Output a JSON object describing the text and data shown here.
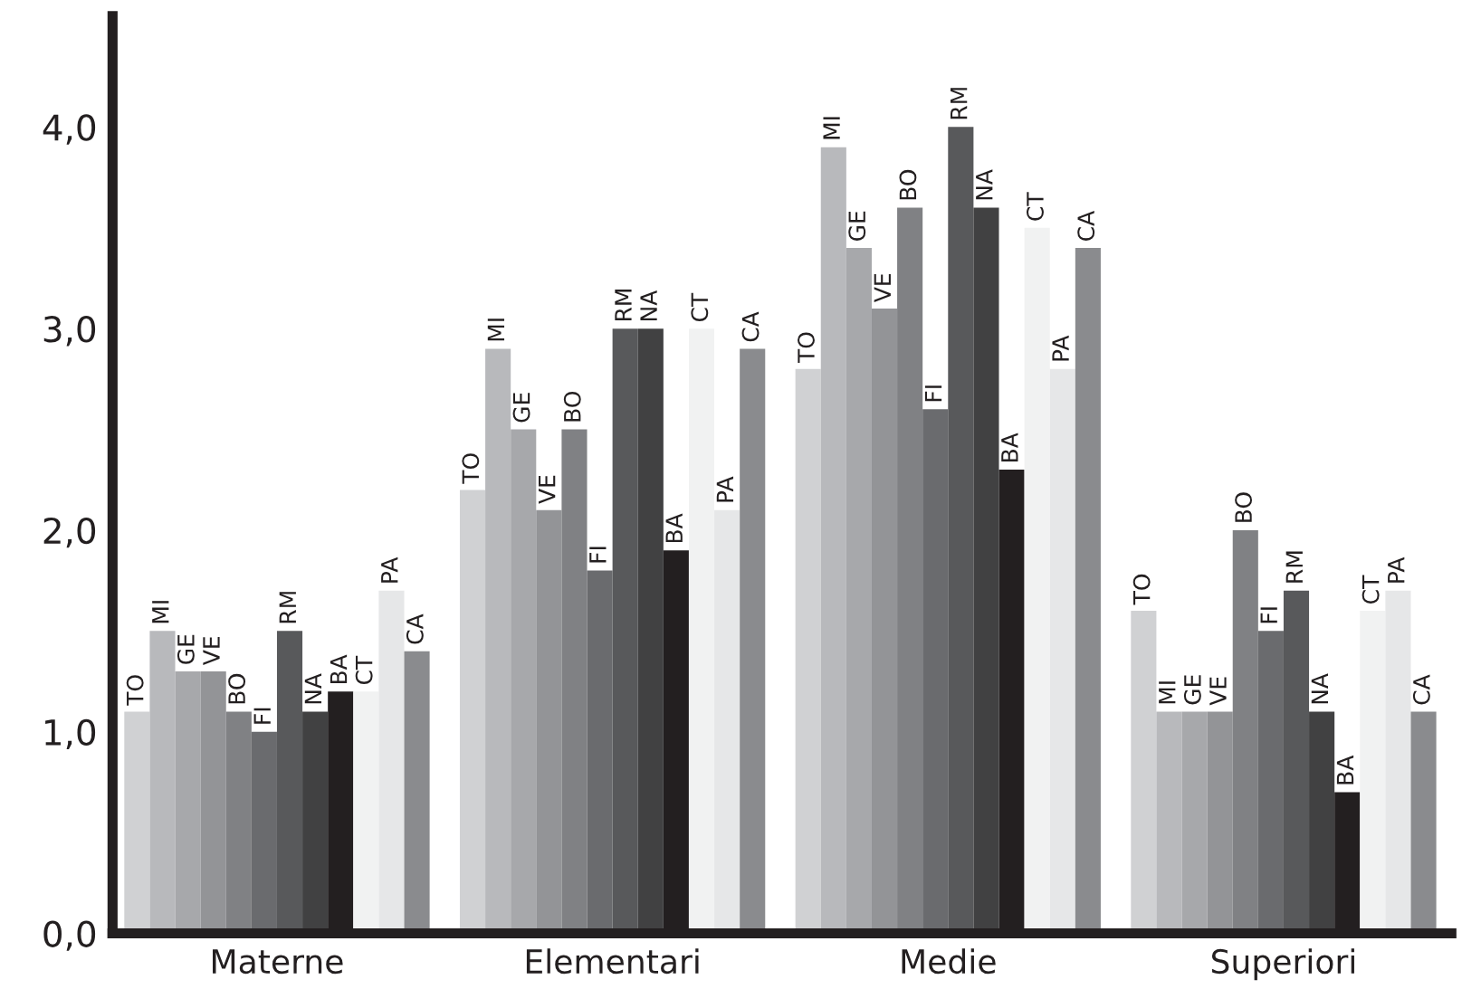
{
  "chart_data": {
    "type": "bar",
    "categories": [
      "Materne",
      "Elementari",
      "Medie",
      "Superiori"
    ],
    "series": [
      {
        "name": "TO",
        "color": "#d0d1d3",
        "values": [
          1.1,
          2.2,
          2.8,
          1.6
        ]
      },
      {
        "name": "MI",
        "color": "#b8b9bc",
        "values": [
          1.5,
          2.9,
          3.9,
          1.1
        ]
      },
      {
        "name": "GE",
        "color": "#a7a8ab",
        "values": [
          1.3,
          2.5,
          3.4,
          1.1
        ]
      },
      {
        "name": "VE",
        "color": "#939497",
        "values": [
          1.3,
          2.1,
          3.1,
          1.1
        ]
      },
      {
        "name": "BO",
        "color": "#808184",
        "values": [
          1.1,
          2.5,
          3.6,
          2.0
        ]
      },
      {
        "name": "FI",
        "color": "#6a6b6e",
        "values": [
          1.0,
          1.8,
          2.6,
          1.5
        ]
      },
      {
        "name": "RM",
        "color": "#58595b",
        "values": [
          1.5,
          3.0,
          4.0,
          1.7
        ]
      },
      {
        "name": "NA",
        "color": "#414142",
        "values": [
          1.1,
          3.0,
          3.6,
          1.1
        ]
      },
      {
        "name": "BA",
        "color": "#231f20",
        "values": [
          1.2,
          1.9,
          2.3,
          0.7
        ]
      },
      {
        "name": "CT",
        "color": "#f1f2f2",
        "values": [
          1.2,
          3.0,
          3.5,
          1.6
        ]
      },
      {
        "name": "PA",
        "color": "#e6e7e8",
        "values": [
          1.7,
          2.1,
          2.8,
          1.7
        ]
      },
      {
        "name": "CA",
        "color": "#8a8b8e",
        "values": [
          1.4,
          2.9,
          3.4,
          1.1
        ]
      }
    ],
    "ylim": [
      0,
      4.55
    ],
    "yticks": [
      {
        "value": 0,
        "label": "0,0"
      },
      {
        "value": 1,
        "label": "1,0"
      },
      {
        "value": 2,
        "label": "2,0"
      },
      {
        "value": 3,
        "label": "3,0"
      },
      {
        "value": 4,
        "label": "4,0"
      }
    ],
    "grid": false,
    "legend": false
  }
}
